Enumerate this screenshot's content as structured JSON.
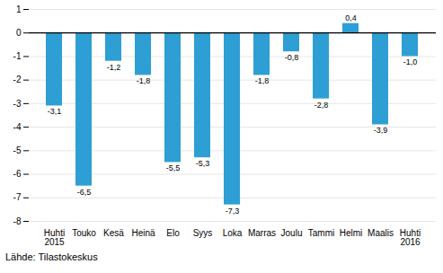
{
  "chart_data": {
    "type": "bar",
    "categories": [
      "Huhti\n2015",
      "Touko",
      "Kesä",
      "Heinä",
      "Elo",
      "Syys",
      "Loka",
      "Marras",
      "Joulu",
      "Tammi",
      "Helmi",
      "Maalis",
      "Huhti\n2016"
    ],
    "values": [
      -3.1,
      -6.5,
      -1.2,
      -1.8,
      -5.5,
      -5.3,
      -7.3,
      -1.8,
      -0.8,
      -2.8,
      0.4,
      -3.9,
      -1.0
    ],
    "value_labels": [
      "-3,1",
      "-6,5",
      "-1,2",
      "-1,8",
      "-5,5",
      "-5,3",
      "-7,3",
      "-1,8",
      "-0,8",
      "-2,8",
      "0,4",
      "-3,9",
      "-1,0"
    ],
    "data_labels": true,
    "color": "#2e9fd4",
    "ylim": [
      -8,
      1
    ],
    "yticks": [
      -8,
      -7,
      -6,
      -5,
      -4,
      -3,
      -2,
      -1,
      0,
      1
    ],
    "grid": true,
    "annotations": [
      "Lähde: Tilastokeskus"
    ]
  }
}
